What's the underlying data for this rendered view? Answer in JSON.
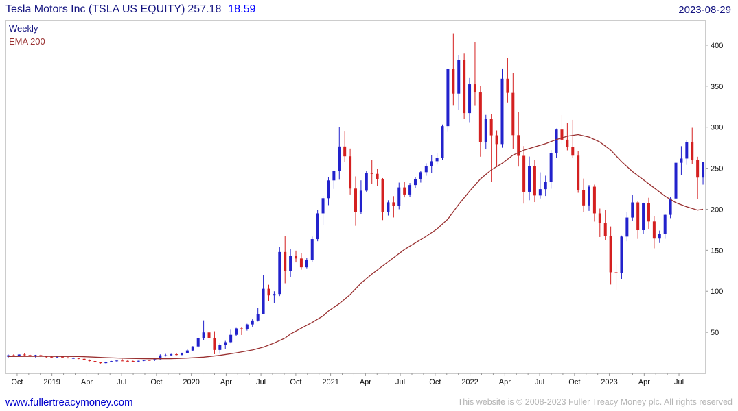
{
  "header": {
    "title": "Tesla Motors Inc (TSLA US EQUITY)",
    "price": "257.18",
    "change": "18.59",
    "date": "2023-08-29"
  },
  "legend": {
    "timeframe": "Weekly",
    "overlay": "EMA 200"
  },
  "footer": {
    "link": "www.fullertreacymoney.com",
    "copyright": "This website is © 2008-2023 Fuller Treacy Money plc. All rights reserved"
  },
  "chart_data": {
    "type": "candlestick",
    "title": "Tesla Motors Inc (TSLA US EQUITY)",
    "timeframe": "Weekly",
    "overlay": "EMA 200",
    "last_price": 257.18,
    "change": 18.59,
    "as_of_date": "2023-08-29",
    "grid": false,
    "legend_position": "top-left",
    "ylim": [
      0,
      430
    ],
    "yticks": [
      50,
      100,
      150,
      200,
      250,
      300,
      350,
      400
    ],
    "xticks": [
      {
        "label": "Oct",
        "pos": 0.0166
      },
      {
        "label": "2019",
        "pos": 0.0663
      },
      {
        "label": "Apr",
        "pos": 0.1161
      },
      {
        "label": "Jul",
        "pos": 0.1658
      },
      {
        "label": "Oct",
        "pos": 0.2156
      },
      {
        "label": "2020",
        "pos": 0.2653
      },
      {
        "label": "Apr",
        "pos": 0.3151
      },
      {
        "label": "Jul",
        "pos": 0.3648
      },
      {
        "label": "Oct",
        "pos": 0.4146
      },
      {
        "label": "2021",
        "pos": 0.4643
      },
      {
        "label": "Apr",
        "pos": 0.5141
      },
      {
        "label": "Jul",
        "pos": 0.5638
      },
      {
        "label": "Oct",
        "pos": 0.6136
      },
      {
        "label": "2022",
        "pos": 0.6633
      },
      {
        "label": "Apr",
        "pos": 0.7131
      },
      {
        "label": "Jul",
        "pos": 0.7628
      },
      {
        "label": "Oct",
        "pos": 0.8126
      },
      {
        "label": "2023",
        "pos": 0.8623
      },
      {
        "label": "Apr",
        "pos": 0.9121
      },
      {
        "label": "Jul",
        "pos": 0.9618
      }
    ],
    "colors": {
      "up": "#2222cc",
      "down": "#d42020",
      "ema": "#993030",
      "axis": "#9a9a9a",
      "tick_text": "#111111"
    },
    "candles": [
      [
        20.4,
        23.0,
        19.2,
        22.0
      ],
      [
        22.0,
        23.2,
        20.5,
        21.2
      ],
      [
        21.2,
        23.4,
        20.8,
        23.0
      ],
      [
        23.0,
        24.3,
        21.5,
        22.3
      ],
      [
        22.3,
        23.5,
        19.8,
        20.5
      ],
      [
        20.5,
        22.6,
        19.5,
        22.2
      ],
      [
        22.2,
        23.1,
        19.9,
        20.7
      ],
      [
        20.7,
        21.5,
        19.0,
        20.2
      ],
      [
        20.2,
        20.9,
        19.1,
        19.5
      ],
      [
        19.5,
        20.8,
        18.8,
        20.5
      ],
      [
        20.5,
        21.0,
        19.2,
        19.4
      ],
      [
        19.4,
        19.9,
        18.2,
        18.6
      ],
      [
        18.6,
        19.4,
        17.6,
        18.7
      ],
      [
        18.7,
        19.2,
        17.3,
        17.7
      ],
      [
        17.7,
        18.3,
        15.9,
        16.3
      ],
      [
        16.3,
        16.9,
        14.6,
        15.0
      ],
      [
        15.0,
        15.4,
        13.1,
        13.5
      ],
      [
        13.5,
        13.9,
        11.8,
        12.4
      ],
      [
        12.4,
        14.3,
        11.9,
        14.0
      ],
      [
        14.0,
        15.2,
        13.4,
        14.9
      ],
      [
        14.9,
        16.1,
        14.2,
        15.6
      ],
      [
        15.6,
        17.6,
        14.8,
        15.2
      ],
      [
        15.2,
        15.9,
        14.3,
        15.0
      ],
      [
        15.0,
        15.6,
        14.0,
        14.4
      ],
      [
        14.4,
        15.5,
        13.8,
        15.3
      ],
      [
        15.3,
        16.5,
        14.9,
        16.1
      ],
      [
        16.1,
        16.5,
        15.4,
        16.0
      ],
      [
        16.0,
        17.4,
        15.2,
        17.1
      ],
      [
        17.1,
        23.2,
        16.8,
        21.9
      ],
      [
        21.9,
        23.7,
        20.6,
        22.0
      ],
      [
        22.0,
        23.9,
        21.6,
        23.3
      ],
      [
        23.3,
        24.6,
        21.9,
        22.4
      ],
      [
        22.4,
        25.2,
        22.1,
        25.0
      ],
      [
        25.0,
        29.0,
        24.6,
        27.9
      ],
      [
        27.9,
        33.2,
        27.3,
        32.8
      ],
      [
        32.8,
        43.5,
        31.5,
        43.3
      ],
      [
        43.3,
        64.6,
        40.8,
        49.9
      ],
      [
        49.9,
        54.5,
        40.0,
        42.7
      ],
      [
        42.7,
        51.3,
        23.4,
        28.5
      ],
      [
        28.5,
        36.5,
        23.9,
        34.9
      ],
      [
        34.9,
        39.6,
        29.8,
        38.0
      ],
      [
        38.0,
        53.2,
        36.6,
        47.0
      ],
      [
        47.0,
        55.4,
        45.5,
        54.7
      ],
      [
        54.7,
        56.0,
        46.8,
        53.7
      ],
      [
        53.7,
        60.4,
        52.1,
        59.6
      ],
      [
        59.6,
        66.6,
        56.8,
        64.4
      ],
      [
        64.4,
        79.6,
        63.2,
        72.5
      ],
      [
        72.5,
        119.7,
        71.8,
        103.0
      ],
      [
        103.0,
        108.0,
        88.5,
        95.0
      ],
      [
        95.0,
        100.0,
        85.9,
        96.7
      ],
      [
        96.7,
        154.0,
        94.2,
        147.9
      ],
      [
        147.9,
        167.0,
        109.8,
        124.6
      ],
      [
        124.6,
        151.9,
        117.1,
        143.3
      ],
      [
        143.3,
        149.6,
        135.2,
        140.0
      ],
      [
        140.0,
        146.9,
        126.4,
        129.3
      ],
      [
        129.3,
        141.0,
        128.0,
        138.0
      ],
      [
        138.0,
        166.7,
        136.0,
        163.6
      ],
      [
        163.6,
        199.5,
        161.0,
        195.0
      ],
      [
        195.0,
        216.1,
        180.4,
        213.5
      ],
      [
        213.5,
        239.6,
        205.0,
        235.2
      ],
      [
        235.2,
        246.8,
        224.8,
        246.6
      ],
      [
        246.6,
        300.1,
        236.0,
        276.5
      ],
      [
        276.5,
        295.5,
        258.0,
        264.5
      ],
      [
        264.5,
        274.0,
        218.0,
        225.2
      ],
      [
        225.2,
        240.0,
        179.8,
        197.0
      ],
      [
        197.0,
        235.3,
        194.0,
        222.6
      ],
      [
        222.6,
        247.0,
        220.6,
        244.0
      ],
      [
        244.0,
        260.3,
        230.5,
        243.2
      ],
      [
        243.2,
        249.0,
        228.0,
        236.5
      ],
      [
        236.5,
        238.0,
        186.8,
        196.6
      ],
      [
        196.6,
        211.0,
        192.4,
        208.4
      ],
      [
        208.4,
        216.0,
        190.0,
        203.9
      ],
      [
        203.9,
        232.5,
        200.0,
        226.6
      ],
      [
        226.6,
        233.3,
        214.5,
        218.0
      ],
      [
        218.0,
        232.0,
        215.0,
        229.5
      ],
      [
        229.5,
        239.0,
        226.0,
        236.6
      ],
      [
        236.6,
        246.8,
        232.5,
        245.2
      ],
      [
        245.2,
        256.0,
        240.8,
        252.5
      ],
      [
        252.5,
        266.3,
        244.5,
        258.5
      ],
      [
        258.5,
        268.3,
        254.5,
        263.0
      ],
      [
        263.0,
        303.3,
        260.0,
        301.3
      ],
      [
        301.3,
        371.7,
        295.0,
        371.3
      ],
      [
        371.3,
        414.5,
        326.2,
        340.9
      ],
      [
        340.9,
        388.0,
        321.0,
        381.6
      ],
      [
        381.6,
        389.7,
        310.0,
        317.2
      ],
      [
        317.2,
        360.0,
        306.0,
        352.3
      ],
      [
        352.3,
        403.3,
        326.0,
        342.3
      ],
      [
        342.3,
        350.0,
        264.0,
        282.1
      ],
      [
        282.1,
        315.0,
        273.0,
        310.0
      ],
      [
        310.0,
        316.0,
        233.3,
        290.1
      ],
      [
        290.1,
        296.0,
        252.0,
        279.4
      ],
      [
        279.4,
        371.6,
        275.0,
        359.2
      ],
      [
        359.2,
        384.3,
        330.0,
        341.8
      ],
      [
        341.8,
        366.0,
        273.9,
        290.3
      ],
      [
        290.3,
        318.5,
        252.0,
        265.1
      ],
      [
        265.1,
        277.0,
        206.9,
        221.3
      ],
      [
        221.3,
        264.2,
        211.0,
        252.8
      ],
      [
        252.8,
        260.0,
        208.7,
        216.8
      ],
      [
        216.8,
        245.0,
        213.1,
        224.5
      ],
      [
        224.5,
        240.9,
        216.2,
        233.6
      ],
      [
        233.6,
        272.0,
        225.0,
        268.2
      ],
      [
        268.2,
        298.3,
        262.5,
        297.1
      ],
      [
        297.1,
        314.7,
        279.8,
        284.8
      ],
      [
        284.8,
        305.0,
        271.8,
        275.6
      ],
      [
        275.6,
        309.0,
        262.5,
        265.3
      ],
      [
        265.3,
        271.0,
        220.0,
        223.1
      ],
      [
        223.1,
        237.4,
        196.7,
        204.7
      ],
      [
        204.7,
        229.5,
        198.0,
        227.5
      ],
      [
        227.5,
        230.0,
        185.0,
        195.0
      ],
      [
        195.0,
        200.8,
        166.2,
        182.9
      ],
      [
        182.9,
        198.9,
        162.0,
        167.8
      ],
      [
        167.8,
        179.0,
        108.2,
        123.2
      ],
      [
        123.2,
        133.0,
        101.8,
        122.4
      ],
      [
        122.4,
        168.0,
        115.0,
        166.7
      ],
      [
        166.7,
        196.8,
        161.0,
        189.9
      ],
      [
        189.9,
        217.7,
        186.0,
        208.3
      ],
      [
        208.3,
        210.0,
        163.9,
        174.5
      ],
      [
        174.5,
        208.0,
        169.9,
        207.5
      ],
      [
        207.5,
        214.0,
        176.1,
        185.1
      ],
      [
        185.1,
        192.0,
        152.4,
        164.3
      ],
      [
        164.3,
        174.0,
        158.8,
        170.1
      ],
      [
        170.1,
        194.0,
        164.0,
        193.2
      ],
      [
        193.2,
        215.0,
        189.2,
        213.1
      ],
      [
        213.1,
        258.0,
        210.1,
        256.6
      ],
      [
        256.6,
        276.9,
        241.6,
        261.8
      ],
      [
        261.8,
        284.3,
        254.1,
        281.4
      ],
      [
        281.4,
        299.3,
        255.3,
        260.0
      ],
      [
        260.0,
        264.0,
        212.4,
        238.6
      ],
      [
        238.6,
        257.7,
        230.0,
        257.2
      ]
    ],
    "ema200": [
      [
        0,
        20.5
      ],
      [
        6,
        20.8
      ],
      [
        13,
        20.6
      ],
      [
        18,
        19.2
      ],
      [
        22,
        18.3
      ],
      [
        26,
        17.8
      ],
      [
        30,
        17.9
      ],
      [
        33,
        18.6
      ],
      [
        36,
        19.8
      ],
      [
        39,
        22.0
      ],
      [
        42,
        25.0
      ],
      [
        45,
        28.5
      ],
      [
        47,
        32.0
      ],
      [
        49,
        37.0
      ],
      [
        51,
        43.0
      ],
      [
        52,
        48.0
      ],
      [
        54,
        55.0
      ],
      [
        56,
        62.0
      ],
      [
        58,
        70.0
      ],
      [
        59,
        76.0
      ],
      [
        61,
        85.0
      ],
      [
        63,
        96.0
      ],
      [
        65,
        110.0
      ],
      [
        67,
        121.0
      ],
      [
        69,
        131.0
      ],
      [
        71,
        141.0
      ],
      [
        73,
        151.0
      ],
      [
        75,
        159.0
      ],
      [
        77,
        167.0
      ],
      [
        79,
        176.0
      ],
      [
        81,
        188.0
      ],
      [
        83,
        206.0
      ],
      [
        85,
        222.0
      ],
      [
        87,
        237.0
      ],
      [
        89,
        248.0
      ],
      [
        91,
        256.0
      ],
      [
        93,
        266.0
      ],
      [
        95,
        272.0
      ],
      [
        97,
        276.0
      ],
      [
        99,
        280.0
      ],
      [
        101,
        285.0
      ],
      [
        103,
        289.0
      ],
      [
        105,
        291.0
      ],
      [
        107,
        288.0
      ],
      [
        109,
        282.0
      ],
      [
        111,
        272.0
      ],
      [
        113,
        258.0
      ],
      [
        115,
        246.0
      ],
      [
        117,
        236.0
      ],
      [
        119,
        226.0
      ],
      [
        121,
        216.0
      ],
      [
        123,
        208.0
      ],
      [
        125,
        203.0
      ],
      [
        127,
        199.0
      ],
      [
        128,
        200.0
      ]
    ]
  }
}
